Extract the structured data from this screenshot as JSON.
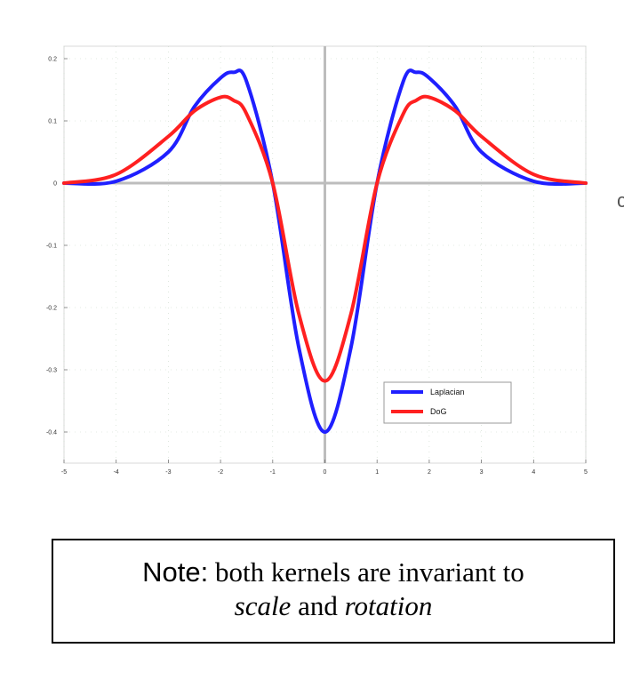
{
  "chart_data": {
    "type": "line",
    "title": "",
    "xlabel": "",
    "ylabel": "",
    "xlim": [
      -5,
      5
    ],
    "ylim": [
      -0.45,
      0.22
    ],
    "grid": true,
    "x_ticks": [
      "-5",
      "-4",
      "-3",
      "-2",
      "-1",
      "0",
      "1",
      "2",
      "3",
      "4",
      "5"
    ],
    "y_ticks": [
      "0.2",
      "0.1",
      "0",
      "-0.1",
      "-0.2",
      "-0.3",
      "-0.4"
    ],
    "series": [
      {
        "name": "Laplacian",
        "color": "#1f1fff",
        "x": [
          -5,
          -4,
          -3,
          -2.5,
          -2,
          -1.75,
          -1.5,
          -1,
          -0.5,
          0,
          0.5,
          1,
          1.5,
          1.75,
          2,
          2.5,
          3,
          4,
          5
        ],
        "y": [
          0.0,
          0.003,
          0.05,
          0.123,
          0.169,
          0.178,
          0.163,
          0.0,
          -0.264,
          -0.4,
          -0.264,
          0.0,
          0.163,
          0.178,
          0.169,
          0.123,
          0.05,
          0.003,
          0.0
        ]
      },
      {
        "name": "DoG",
        "color": "#ff2020",
        "x": [
          -5,
          -4,
          -3,
          -2.5,
          -2,
          -1.75,
          -1.5,
          -1,
          -0.5,
          0,
          0.5,
          1,
          1.5,
          1.75,
          2,
          2.5,
          3,
          4,
          5
        ],
        "y": [
          0.0,
          0.014,
          0.075,
          0.116,
          0.138,
          0.133,
          0.111,
          0.0,
          -0.21,
          -0.318,
          -0.21,
          0.0,
          0.111,
          0.133,
          0.138,
          0.116,
          0.075,
          0.014,
          0.0
        ]
      }
    ],
    "legend": {
      "placement": "bottom-right",
      "entries": [
        "Laplacian",
        "DoG"
      ]
    }
  },
  "note": {
    "lead": "Note:",
    "line1_rest": " both kernels are invariant to",
    "scale_word": "scale",
    "and_word": " and ",
    "rotation_word": "rotation"
  },
  "edge_glyph": "c"
}
